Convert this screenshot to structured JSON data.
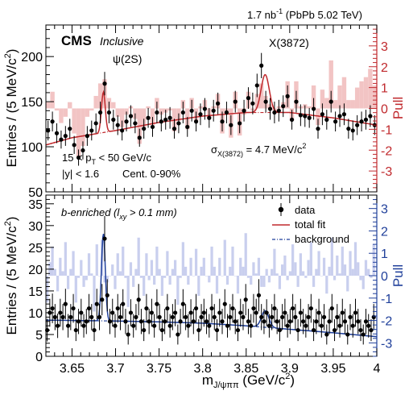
{
  "header": {
    "lumi": "1.7 nb",
    "lumi_sup": "-1",
    "system": " (PbPb 5.02 TeV)"
  },
  "xaxis": {
    "range": [
      3.62,
      4.0
    ],
    "ticks": [
      3.65,
      3.7,
      3.75,
      3.8,
      3.85,
      3.9,
      3.95,
      4.0
    ],
    "tick_labels": [
      "3.65",
      "3.7",
      "3.75",
      "3.8",
      "3.85",
      "3.9",
      "3.95",
      "4"
    ],
    "label_main": "m",
    "label_sub": "J/ψππ",
    "label_unit": " (GeV/c",
    "label_unit_sup": "2",
    "label_unit_end": ")"
  },
  "colors": {
    "top_fit": "#c0292d",
    "top_pull": "#f2c4c4",
    "bottom_fit": "#1f3f9a",
    "bottom_pull": "#c9cfee",
    "data": "#000000"
  },
  "chart_data": [
    {
      "type": "scatter",
      "panel": "inclusive",
      "cms_label": "CMS",
      "title": "Inclusive",
      "ylabel_main": "Entries / (5 MeV/c",
      "ylabel_sup": "2",
      "ylabel_end": ")",
      "ylim": [
        50,
        235
      ],
      "yticks": [
        50,
        100,
        150,
        200
      ],
      "pull_label": "Pull",
      "pull_lim": [
        -4,
        4
      ],
      "pull_ticks": [
        -3,
        -2,
        -1,
        0,
        1,
        2,
        3
      ],
      "annotations": {
        "psi2s": "ψ(2S)",
        "x3872": "X(3872)",
        "pt_cut_a": "15 < p",
        "pt_cut_sub": "T",
        "pt_cut_b": " < 50 GeV/c",
        "y_cut": "|y| < 1.6",
        "centrality": "Cent. 0-90%",
        "sigma_a": "σ",
        "sigma_sub": "X(3872)",
        "sigma_b": " = 4.7 MeV/c",
        "sigma_sup": "2"
      },
      "x": [
        3.6225,
        3.6275,
        3.6325,
        3.6375,
        3.6425,
        3.6475,
        3.6525,
        3.6575,
        3.6625,
        3.6675,
        3.6725,
        3.6775,
        3.6825,
        3.6875,
        3.6925,
        3.6975,
        3.7025,
        3.7075,
        3.7125,
        3.7175,
        3.7225,
        3.7275,
        3.7325,
        3.7375,
        3.7425,
        3.7475,
        3.7525,
        3.7575,
        3.7625,
        3.7675,
        3.7725,
        3.7775,
        3.7825,
        3.7875,
        3.7925,
        3.7975,
        3.8025,
        3.8075,
        3.8125,
        3.8175,
        3.8225,
        3.8275,
        3.8325,
        3.8375,
        3.8425,
        3.8475,
        3.8525,
        3.8575,
        3.8625,
        3.8675,
        3.8725,
        3.8775,
        3.8825,
        3.8875,
        3.8925,
        3.8975,
        3.9025,
        3.9075,
        3.9125,
        3.9175,
        3.9225,
        3.9275,
        3.9325,
        3.9375,
        3.9425,
        3.9475,
        3.9525,
        3.9575,
        3.9625,
        3.9675,
        3.9725,
        3.9775,
        3.9825,
        3.9875,
        3.9925,
        3.9975
      ],
      "values": [
        118,
        128,
        115,
        108,
        112,
        120,
        102,
        88,
        96,
        112,
        118,
        126,
        138,
        170,
        138,
        130,
        124,
        118,
        128,
        134,
        126,
        110,
        120,
        132,
        122,
        138,
        128,
        130,
        132,
        120,
        126,
        138,
        122,
        140,
        128,
        136,
        142,
        132,
        140,
        148,
        128,
        138,
        124,
        150,
        126,
        140,
        154,
        148,
        168,
        190,
        150,
        142,
        138,
        140,
        145,
        156,
        130,
        150,
        135,
        134,
        132,
        142,
        120,
        136,
        130,
        150,
        128,
        134,
        136,
        120,
        118,
        124,
        128,
        130,
        134,
        124
      ],
      "errors": [
        11,
        11,
        11,
        10,
        11,
        11,
        10,
        9,
        10,
        11,
        11,
        11,
        12,
        13,
        12,
        11,
        11,
        11,
        11,
        12,
        11,
        10,
        11,
        11,
        11,
        12,
        11,
        11,
        12,
        11,
        11,
        12,
        11,
        12,
        11,
        12,
        12,
        11,
        12,
        12,
        11,
        12,
        11,
        12,
        11,
        12,
        12,
        12,
        13,
        14,
        12,
        12,
        12,
        12,
        12,
        12,
        11,
        12,
        12,
        12,
        11,
        12,
        11,
        12,
        11,
        12,
        11,
        12,
        12,
        11,
        11,
        11,
        11,
        11,
        12,
        11
      ],
      "pull": [
        0.3,
        0.8,
        -0.1,
        -0.7,
        -0.4,
        0.3,
        -1.2,
        -2.3,
        -1.8,
        -0.4,
        -0.1,
        0.6,
        1.2,
        1.4,
        0.5,
        0.3,
        -0.4,
        -0.9,
        -0.3,
        0.1,
        -0.5,
        -1.7,
        -0.9,
        0.1,
        -0.8,
        0.5,
        -0.3,
        -0.2,
        -0.1,
        -1.1,
        -0.6,
        0.4,
        -1.0,
        0.5,
        -0.6,
        0.1,
        0.4,
        -0.5,
        0.1,
        0.7,
        -1.2,
        -0.3,
        -1.4,
        0.8,
        -1.3,
        -0.3,
        0.8,
        -0.1,
        0.7,
        1.2,
        0.6,
        0.2,
        -0.1,
        0.1,
        0.3,
        1.3,
        -0.6,
        1.3,
        0.1,
        0.2,
        0.1,
        1.1,
        -0.8,
        0.9,
        0.5,
        2.3,
        0.4,
        1.1,
        1.5,
        0.4,
        0.4,
        1.0,
        1.3,
        1.5,
        1.9,
        1.1
      ],
      "fit": {
        "bkg": [
          [
            3.62,
            102
          ],
          [
            3.65,
            110
          ],
          [
            3.7,
            118
          ],
          [
            3.75,
            127
          ],
          [
            3.8,
            134
          ],
          [
            3.85,
            138
          ],
          [
            3.9,
            138
          ],
          [
            3.95,
            132
          ],
          [
            4.0,
            124
          ]
        ],
        "peaks": [
          {
            "mu": 3.686,
            "sigma": 0.0022,
            "amp": 45
          },
          {
            "mu": 3.8718,
            "sigma": 0.0047,
            "amp": 42
          }
        ]
      }
    },
    {
      "type": "scatter",
      "panel": "b-enriched",
      "title": "b-enriched (l",
      "title_sub": "xy",
      "title_end": " > 0.1 mm)",
      "ylabel_main": "Entries / (5 MeV/c",
      "ylabel_sup": "2",
      "ylabel_end": ")",
      "ylim": [
        0,
        37
      ],
      "yticks": [
        0,
        5,
        10,
        15,
        20,
        25,
        30,
        35
      ],
      "pull_label": "Pull",
      "pull_lim": [
        -3.6,
        3.6
      ],
      "pull_ticks": [
        -3,
        -2,
        -1,
        0,
        1,
        2,
        3
      ],
      "legend": {
        "data": "data",
        "fit": "total fit",
        "bkg": "background"
      },
      "x": [
        3.6215,
        3.6245,
        3.6275,
        3.6305,
        3.6335,
        3.6365,
        3.6395,
        3.6425,
        3.6455,
        3.6485,
        3.6515,
        3.6545,
        3.6575,
        3.6605,
        3.6635,
        3.6665,
        3.6695,
        3.6725,
        3.6755,
        3.6785,
        3.6815,
        3.6845,
        3.6875,
        3.6905,
        3.6935,
        3.6965,
        3.6995,
        3.7025,
        3.7055,
        3.7085,
        3.7115,
        3.7145,
        3.7175,
        3.7205,
        3.7235,
        3.7265,
        3.7295,
        3.7325,
        3.7355,
        3.7385,
        3.7415,
        3.7445,
        3.7475,
        3.7505,
        3.7535,
        3.7565,
        3.7595,
        3.7625,
        3.7655,
        3.7685,
        3.7715,
        3.7745,
        3.7775,
        3.7805,
        3.7835,
        3.7865,
        3.7895,
        3.7925,
        3.7955,
        3.7985,
        3.8015,
        3.8045,
        3.8075,
        3.8105,
        3.8135,
        3.8165,
        3.8195,
        3.8225,
        3.8255,
        3.8285,
        3.8315,
        3.8345,
        3.8375,
        3.8405,
        3.8435,
        3.8465,
        3.8495,
        3.8525,
        3.8555,
        3.8585,
        3.8615,
        3.8645,
        3.8675,
        3.8705,
        3.8735,
        3.8765,
        3.8795,
        3.8825,
        3.8855,
        3.8885,
        3.8915,
        3.8945,
        3.8975,
        3.9005,
        3.9035,
        3.9065,
        3.9095,
        3.9125,
        3.9155,
        3.9185,
        3.9215,
        3.9245,
        3.9275,
        3.9305,
        3.9335,
        3.9365,
        3.9395,
        3.9425,
        3.9455,
        3.9485,
        3.9515,
        3.9545,
        3.9575,
        3.9605,
        3.9635,
        3.9665,
        3.9695,
        3.9725,
        3.9755,
        3.9785,
        3.9815,
        3.9845,
        3.9875,
        3.9905,
        3.9935,
        3.9965
      ],
      "values": [
        6,
        10,
        11,
        9,
        7,
        10,
        9,
        12,
        7,
        9,
        11,
        6,
        8,
        10,
        7,
        8,
        11,
        9,
        6,
        12,
        9,
        13,
        27,
        14,
        8,
        10,
        7,
        11,
        9,
        12,
        8,
        5,
        10,
        7,
        9,
        13,
        8,
        6,
        11,
        8,
        10,
        7,
        12,
        9,
        6,
        8,
        11,
        7,
        9,
        10,
        5,
        8,
        12,
        9,
        7,
        10,
        8,
        11,
        6,
        9,
        10,
        8,
        7,
        11,
        9,
        6,
        10,
        8,
        12,
        7,
        9,
        11,
        8,
        6,
        10,
        9,
        13,
        8,
        7,
        11,
        10,
        14,
        9,
        8,
        10,
        7,
        9,
        11,
        8,
        6,
        9,
        10,
        7,
        8,
        11,
        9,
        6,
        10,
        8,
        7,
        9,
        11,
        6,
        8,
        10,
        7,
        9,
        5,
        8,
        11,
        6,
        9,
        7,
        10,
        8,
        5,
        9,
        7,
        10,
        8,
        6,
        5,
        8,
        7,
        6,
        9
      ],
      "errors": [
        2.6,
        3.2,
        3.4,
        3.0,
        2.8,
        3.2,
        3.0,
        3.5,
        2.7,
        3.0,
        3.3,
        2.5,
        2.9,
        3.2,
        2.7,
        2.9,
        3.3,
        3.0,
        2.5,
        3.5,
        3.0,
        3.6,
        5.2,
        3.7,
        2.9,
        3.2,
        2.7,
        3.3,
        3.0,
        3.4,
        2.9,
        2.3,
        3.1,
        2.7,
        3.0,
        3.6,
        2.9,
        2.5,
        3.3,
        2.9,
        3.2,
        2.7,
        3.4,
        3.0,
        2.5,
        2.9,
        3.3,
        2.7,
        3.0,
        3.1,
        2.3,
        2.9,
        3.4,
        3.0,
        2.7,
        3.1,
        2.9,
        3.3,
        2.5,
        3.0,
        3.2,
        2.9,
        2.7,
        3.3,
        3.0,
        2.5,
        3.2,
        2.9,
        3.4,
        2.7,
        3.0,
        3.3,
        2.9,
        2.5,
        3.2,
        3.0,
        3.6,
        2.9,
        2.7,
        3.3,
        3.2,
        3.7,
        3.0,
        2.9,
        3.1,
        2.7,
        3.0,
        3.3,
        2.9,
        2.5,
        3.0,
        3.2,
        2.7,
        2.9,
        3.3,
        3.0,
        2.5,
        3.2,
        2.9,
        2.7,
        3.0,
        3.3,
        2.5,
        2.9,
        3.2,
        2.7,
        3.0,
        2.3,
        2.9,
        3.3,
        2.5,
        3.0,
        2.7,
        3.2,
        2.9,
        2.3,
        3.0,
        2.7,
        3.2,
        2.9,
        2.5,
        2.3,
        2.9,
        2.7,
        2.5,
        3.0
      ],
      "pull": [
        -1.2,
        0.6,
        1.3,
        0.3,
        -0.7,
        0.8,
        0.2,
        1.5,
        -0.6,
        0.3,
        1.1,
        -1.2,
        -0.1,
        0.7,
        -0.5,
        -0.2,
        1.0,
        0.1,
        -1.6,
        1.4,
        0.0,
        1.6,
        -0.3,
        -0.3,
        0.0,
        0.5,
        -0.6,
        1.0,
        0.2,
        1.3,
        -0.1,
        -1.4,
        0.6,
        -0.5,
        0.3,
        1.7,
        -0.1,
        -0.9,
        1.0,
        -0.2,
        0.7,
        -0.4,
        1.3,
        0.3,
        -0.9,
        -0.1,
        1.1,
        -0.4,
        0.3,
        0.7,
        -1.3,
        -0.1,
        1.5,
        0.4,
        -0.4,
        0.8,
        0.0,
        1.2,
        -0.9,
        0.4,
        0.8,
        0.0,
        -0.3,
        1.3,
        0.4,
        -0.8,
        0.8,
        0.0,
        1.6,
        -0.4,
        0.4,
        1.3,
        0.0,
        -0.8,
        0.8,
        0.4,
        1.9,
        -0.1,
        -0.4,
        0.6,
        0.1,
        0.8,
        -0.5,
        -0.5,
        0.3,
        -0.3,
        0.3,
        1.2,
        0.1,
        -0.6,
        0.5,
        0.9,
        -0.2,
        0.2,
        1.4,
        0.6,
        -0.5,
        1.0,
        0.2,
        -0.1,
        0.7,
        1.5,
        -0.5,
        0.3,
        1.1,
        0.0,
        0.8,
        -0.8,
        0.4,
        1.7,
        -0.2,
        0.9,
        0.1,
        1.3,
        0.5,
        -0.7,
        1.1,
        0.3,
        1.5,
        0.6,
        -0.2,
        -0.6,
        0.7,
        0.3,
        -0.1,
        1.4
      ],
      "fit": {
        "bkg": [
          [
            3.62,
            8.3
          ],
          [
            3.7,
            8.1
          ],
          [
            3.75,
            7.9
          ],
          [
            3.8,
            7.6
          ],
          [
            3.85,
            7.0
          ],
          [
            3.9,
            6.2
          ],
          [
            3.95,
            5.4
          ],
          [
            4.0,
            4.5
          ]
        ],
        "peaks": [
          {
            "mu": 3.686,
            "sigma": 0.0022,
            "amp": 20
          },
          {
            "mu": 3.8718,
            "sigma": 0.0042,
            "amp": 3.8
          }
        ]
      }
    }
  ]
}
